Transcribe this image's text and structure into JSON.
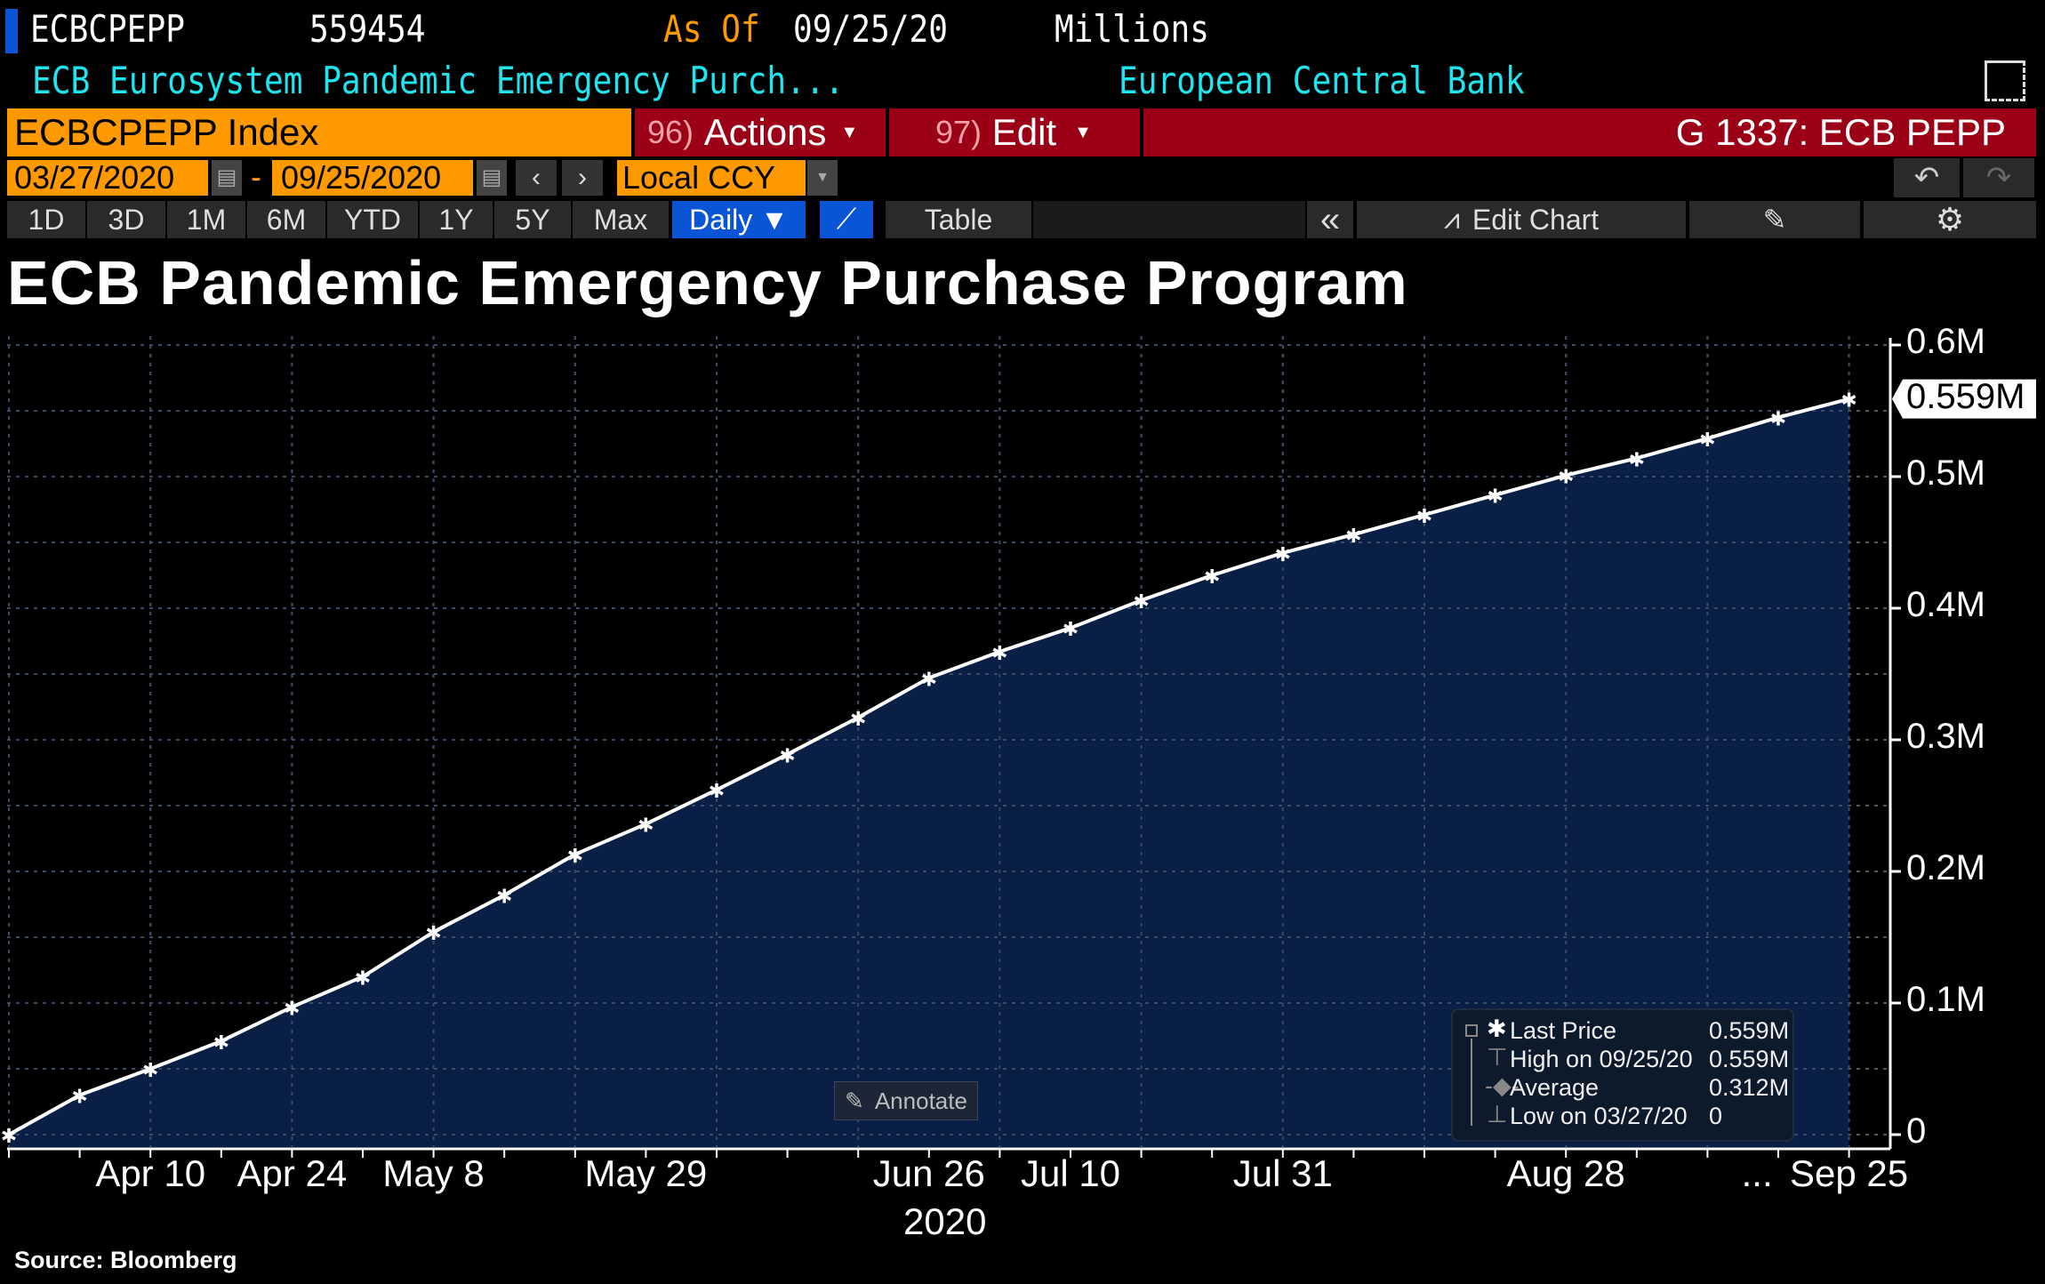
{
  "header": {
    "ticker": "ECBCPEPP",
    "value": "559454",
    "as_of_label": "As Of",
    "as_of_date": "09/25/20",
    "units": "Millions",
    "description": "ECB Eurosystem Pandemic Emergency Purch...",
    "source_name": "European Central Bank"
  },
  "command": {
    "security": "ECBCPEPP Index",
    "actions_num": "96)",
    "actions": "Actions",
    "edit_num": "97)",
    "edit": "Edit",
    "function": "G 1337: ECB PEPP"
  },
  "dates": {
    "start": "03/27/2020",
    "sep": "-",
    "end": "09/25/2020",
    "currency": "Local CCY"
  },
  "toolbar": {
    "ranges": [
      "1D",
      "3D",
      "1M",
      "6M",
      "YTD",
      "1Y",
      "5Y",
      "Max"
    ],
    "frequency": "Daily ▼",
    "table": "Table",
    "collapse": "«",
    "edit_chart": "Edit Chart"
  },
  "annotate": "Annotate",
  "colors": {
    "accent_orange": "#ff9900",
    "bar_red": "#9c0017",
    "cyan": "#1ee6f0",
    "area": "#0a1f45",
    "active_blue": "#0a55d6"
  },
  "legend": [
    {
      "label": "Last Price",
      "value": "0.559M"
    },
    {
      "label": "High on 09/25/20",
      "value": "0.559M"
    },
    {
      "label": "Average",
      "value": "0.312M"
    },
    {
      "label": "Low on 03/27/20",
      "value": "0"
    }
  ],
  "source": "Source: Bloomberg",
  "chart_data": {
    "type": "area",
    "title": "ECB Pandemic Emergency Purchase Program",
    "xlabel": "2020",
    "ylabel": "",
    "x": [
      "03/27",
      "04/03",
      "04/10",
      "04/17",
      "04/24",
      "05/01",
      "05/08",
      "05/15",
      "05/22",
      "05/29",
      "06/05",
      "06/12",
      "06/19",
      "06/26",
      "07/03",
      "07/10",
      "07/17",
      "07/24",
      "07/31",
      "08/07",
      "08/14",
      "08/21",
      "08/28",
      "09/04",
      "09/11",
      "09/18",
      "09/25"
    ],
    "values": [
      0,
      0.03,
      0.05,
      0.071,
      0.097,
      0.12,
      0.154,
      0.182,
      0.213,
      0.236,
      0.262,
      0.289,
      0.317,
      0.347,
      0.367,
      0.385,
      0.406,
      0.425,
      0.442,
      0.456,
      0.471,
      0.486,
      0.501,
      0.514,
      0.529,
      0.545,
      0.559
    ],
    "ylim": [
      0,
      0.6
    ],
    "yticks": [
      "0",
      "0.1M",
      "0.2M",
      "0.3M",
      "0.4M",
      "0.5M",
      "0.6M"
    ],
    "xticks": [
      {
        "i": 2,
        "label": "Apr 10"
      },
      {
        "i": 4,
        "label": "Apr 24"
      },
      {
        "i": 6,
        "label": "May 8"
      },
      {
        "i": 9,
        "label": "May 29"
      },
      {
        "i": 13,
        "label": "Jun 26"
      },
      {
        "i": 15,
        "label": "Jul 10"
      },
      {
        "i": 18,
        "label": "Jul 31"
      },
      {
        "i": 22,
        "label": "Aug 28"
      },
      {
        "i": 24.7,
        "label": "..."
      },
      {
        "i": 26,
        "label": "Sep 25"
      }
    ],
    "last_label": "0.559M",
    "grid": true
  }
}
